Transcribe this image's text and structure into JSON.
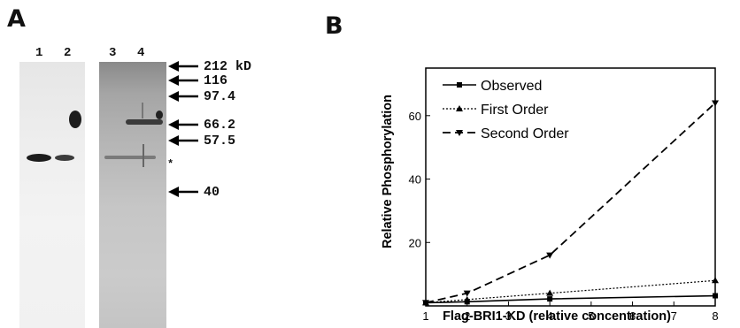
{
  "panel_a": {
    "letter": "A",
    "lanes": [
      "1",
      "2",
      "3",
      "4"
    ],
    "mw_markers": [
      "212 kD",
      "116",
      "97.4",
      "66.2",
      "57.5",
      "40"
    ],
    "star": "*"
  },
  "panel_b": {
    "letter": "B"
  },
  "chart_data": {
    "type": "line",
    "title": "",
    "xlabel": "Flag-BRI1-KD (relative concentration)",
    "ylabel": "Relative Phosphorylation",
    "x": [
      1,
      2,
      4,
      8
    ],
    "xticks": [
      1,
      2,
      3,
      4,
      5,
      6,
      7,
      8
    ],
    "yticks": [
      20,
      40,
      60
    ],
    "xlim": [
      1,
      8
    ],
    "ylim": [
      0,
      75
    ],
    "grid": false,
    "legend_position": "top-left",
    "series": [
      {
        "name": "Observed",
        "values": [
          1,
          1.3,
          2.2,
          3.2
        ],
        "marker": "square",
        "line": "solid"
      },
      {
        "name": "First Order",
        "values": [
          1,
          2,
          4,
          8
        ],
        "marker": "triangle-up",
        "line": "dotted"
      },
      {
        "name": "Second Order",
        "values": [
          1,
          4,
          16,
          64
        ],
        "marker": "triangle-down",
        "line": "dashed"
      }
    ]
  }
}
